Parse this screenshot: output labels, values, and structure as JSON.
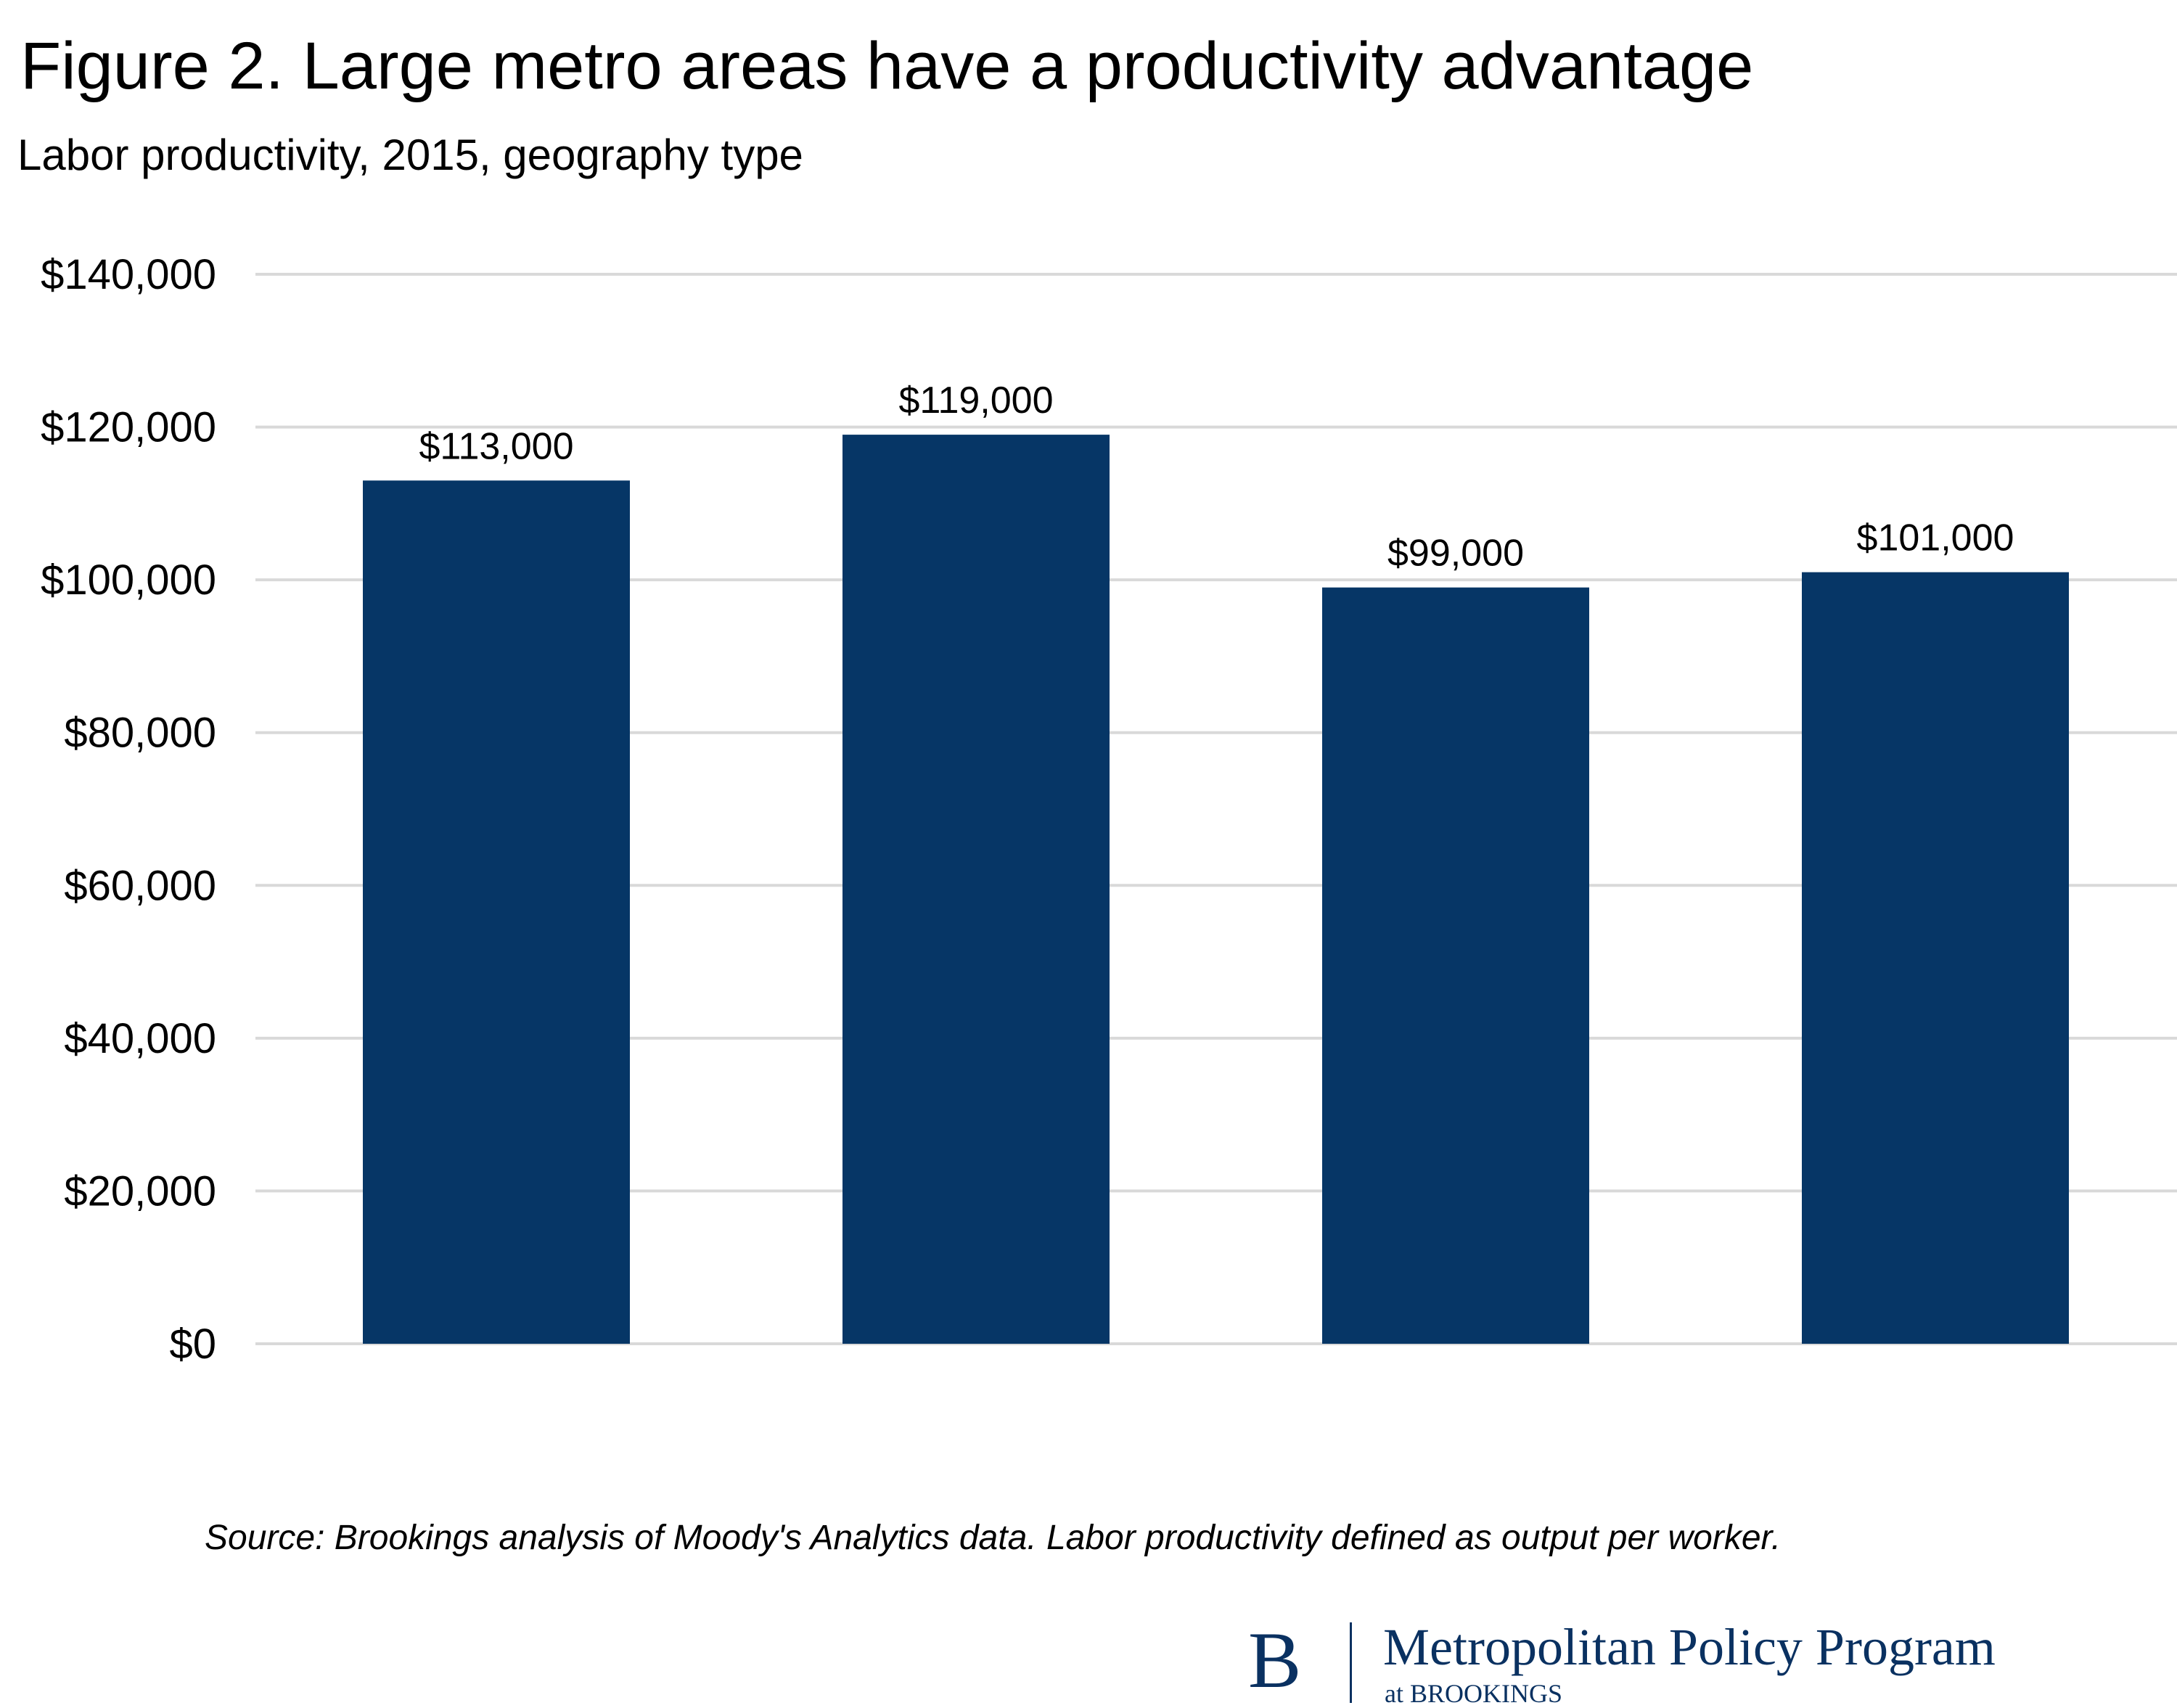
{
  "title": "Figure 2. Large metro areas have a productivity advantage",
  "subtitle": "Labor productivity, 2015, geography type",
  "source": "Source: Brookings analysis of Moody's Analytics data. Labor productivity defined as output per worker.",
  "logo": {
    "mark": "B",
    "name": "Metropolitan Policy Program",
    "org": "at BROOKINGS"
  },
  "colors": {
    "bar": "#063666",
    "grid": "#d9d9d9",
    "logo": "#0a3161"
  },
  "chart_data": {
    "type": "bar",
    "title": "Figure 2. Large metro areas have a productivity advantage",
    "subtitle": "Labor productivity, 2015, geography type",
    "categories": [
      "",
      "",
      "",
      ""
    ],
    "values": [
      113000,
      119000,
      99000,
      101000
    ],
    "data_labels": [
      "$113,000",
      "$119,000",
      "$99,000",
      "$101,000"
    ],
    "y_ticks": [
      0,
      20000,
      40000,
      60000,
      80000,
      100000,
      120000,
      140000
    ],
    "y_tick_labels": [
      "$0",
      "$20,000",
      "$40,000",
      "$60,000",
      "$80,000",
      "$100,000",
      "$120,000",
      "$140,000"
    ],
    "ylim": [
      0,
      140000
    ],
    "xlabel": "",
    "ylabel": "",
    "grid": true,
    "legend": "none"
  }
}
